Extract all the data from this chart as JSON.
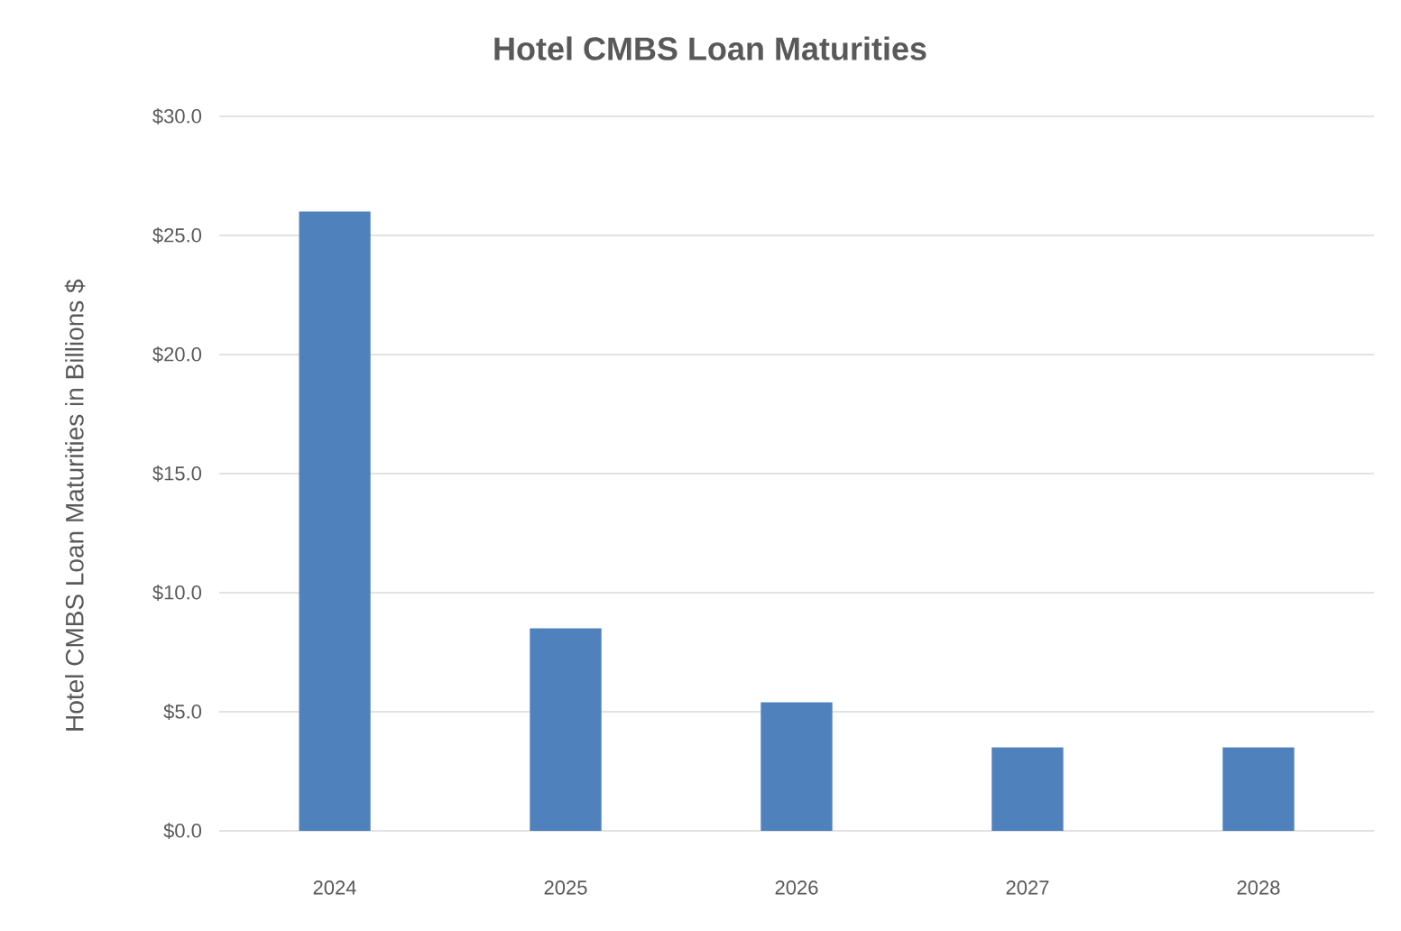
{
  "chart_data": {
    "type": "bar",
    "title": "Hotel CMBS Loan Maturities",
    "ylabel": "Hotel CMBS Loan Maturities in Billions $",
    "categories": [
      "2024",
      "2025",
      "2026",
      "2027",
      "2028"
    ],
    "values": [
      26.0,
      8.5,
      5.4,
      3.5,
      3.5
    ],
    "color": "#4f81bd",
    "ylim": [
      0,
      30
    ],
    "yticks": [
      {
        "value": 0,
        "label": "$0.0"
      },
      {
        "value": 5,
        "label": "$5.0"
      },
      {
        "value": 10,
        "label": "$10.0"
      },
      {
        "value": 15,
        "label": "$15.0"
      },
      {
        "value": 20,
        "label": "$20.0"
      },
      {
        "value": 25,
        "label": "$25.0"
      },
      {
        "value": 30,
        "label": "$30.0"
      }
    ],
    "grid": "y"
  }
}
